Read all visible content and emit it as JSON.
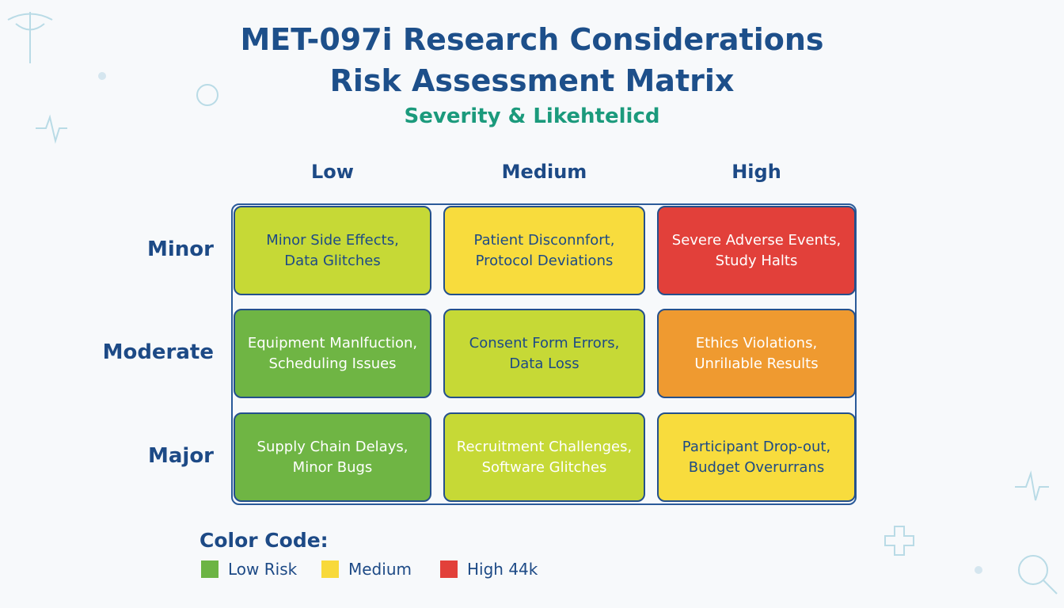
{
  "header": {
    "title": [
      "MET-097i Research Considerations",
      "Risk Assessment Matrix"
    ],
    "subtitle": "Severity & Likehtelicd"
  },
  "matrix": {
    "columns": [
      "Low",
      "Medium",
      "High"
    ],
    "rows": [
      {
        "label": "Minor",
        "cells": [
          [
            "Minor Side Effects,",
            "Data Glitches"
          ],
          [
            "Patient Disconnfort,",
            "Protocol Deviations"
          ],
          [
            "Severe Adverse Events,",
            "Study Halts"
          ]
        ]
      },
      {
        "label": "Moderate",
        "cells": [
          [
            "Equipment Manlfuction,",
            "Scheduling Issues"
          ],
          [
            "Consent Form Errors,",
            "Data Loss"
          ],
          [
            "Ethics Violations,",
            "Unrilıable Results"
          ]
        ]
      },
      {
        "label": "Major",
        "cells": [
          [
            "Supply Chain Delays,",
            "Minor Bugs"
          ],
          [
            "Recruitment Challenges,",
            "Software Glitches"
          ],
          [
            "Participant Drop-out,",
            "Budget Overurrans"
          ]
        ]
      }
    ]
  },
  "legend": {
    "title": "Color Code:",
    "items": [
      "Low Risk",
      "Medium",
      "High 44k"
    ]
  }
}
